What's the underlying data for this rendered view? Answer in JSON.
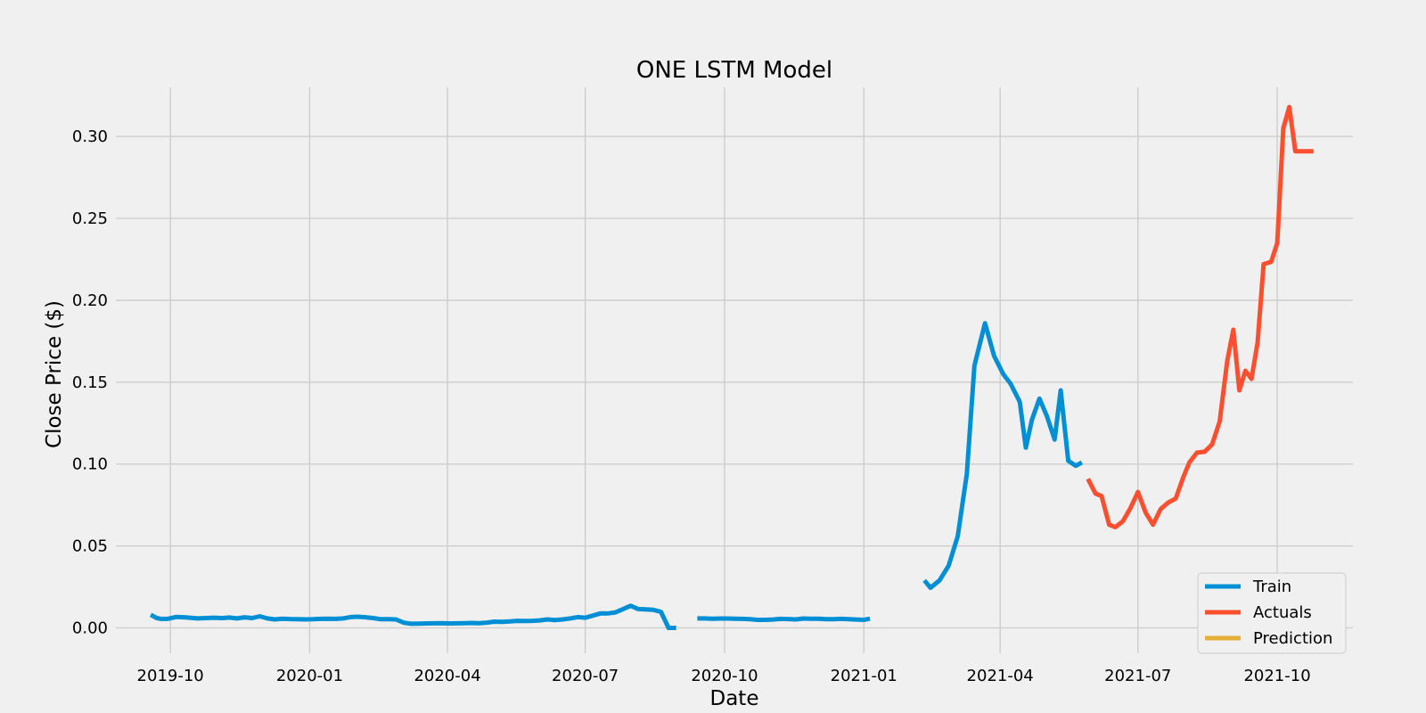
{
  "chart_data": {
    "type": "line",
    "title": "ONE LSTM Model",
    "xlabel": "Date",
    "ylabel": "Close Price ($)",
    "x_range": [
      "2019-08-26",
      "2021-11-20"
    ],
    "ylim": [
      -0.0155,
      0.33
    ],
    "x_ticks": [
      "2019-10-01",
      "2020-01-01",
      "2020-04-01",
      "2020-07-01",
      "2020-10-01",
      "2021-01-01",
      "2021-04-01",
      "2021-07-01",
      "2021-10-01"
    ],
    "x_tick_labels": [
      "2019-10",
      "2020-01",
      "2020-04",
      "2020-07",
      "2020-10",
      "2021-01",
      "2021-04",
      "2021-07",
      "2021-10"
    ],
    "y_ticks": [
      0.0,
      0.05,
      0.1,
      0.15,
      0.2,
      0.25,
      0.3
    ],
    "y_tick_labels": [
      "0.00",
      "0.05",
      "0.10",
      "0.15",
      "0.20",
      "0.25",
      "0.30"
    ],
    "grid": true,
    "legend_position": "lower-right",
    "colors": {
      "Train": "#008fd5",
      "Actuals": "#fc4f30",
      "Prediction": "#e5ae38"
    },
    "series": [
      {
        "name": "Train",
        "segments": [
          {
            "x": [
              "2019-09-18",
              "2019-09-22",
              "2019-09-25",
              "2019-09-29",
              "2019-10-05",
              "2019-10-10",
              "2019-10-14",
              "2019-10-19",
              "2019-10-24",
              "2019-10-30",
              "2019-11-04",
              "2019-11-09",
              "2019-11-14",
              "2019-11-19",
              "2019-11-24",
              "2019-11-29",
              "2019-12-04",
              "2019-12-09",
              "2019-12-14",
              "2019-12-19",
              "2019-12-24",
              "2019-12-29",
              "2020-01-03",
              "2020-01-08",
              "2020-01-13",
              "2020-01-18",
              "2020-01-23",
              "2020-01-28",
              "2020-02-02",
              "2020-02-07",
              "2020-02-12",
              "2020-02-17",
              "2020-02-22",
              "2020-02-27",
              "2020-03-03",
              "2020-03-08",
              "2020-03-13",
              "2020-03-18",
              "2020-03-23",
              "2020-03-28",
              "2020-04-02",
              "2020-04-07",
              "2020-04-12",
              "2020-04-17",
              "2020-04-22",
              "2020-04-27",
              "2020-05-02",
              "2020-05-07",
              "2020-05-12",
              "2020-05-17",
              "2020-05-22",
              "2020-05-27",
              "2020-06-01",
              "2020-06-06",
              "2020-06-11",
              "2020-06-16",
              "2020-06-21",
              "2020-06-26",
              "2020-07-01",
              "2020-07-06",
              "2020-07-11",
              "2020-07-16",
              "2020-07-21",
              "2020-07-26",
              "2020-07-31",
              "2020-08-05",
              "2020-08-10",
              "2020-08-15",
              "2020-08-20",
              "2020-08-25",
              "2020-08-30"
            ],
            "y": [
              0.008,
              0.006,
              0.0055,
              0.0055,
              0.0067,
              0.0065,
              0.0062,
              0.0058,
              0.006,
              0.0062,
              0.006,
              0.0063,
              0.0058,
              0.0065,
              0.006,
              0.0071,
              0.0058,
              0.0052,
              0.0056,
              0.0054,
              0.0053,
              0.0052,
              0.0053,
              0.0055,
              0.0056,
              0.0055,
              0.0058,
              0.0066,
              0.0068,
              0.0065,
              0.006,
              0.0053,
              0.0053,
              0.0052,
              0.0032,
              0.0025,
              0.0026,
              0.0027,
              0.0028,
              0.0029,
              0.0027,
              0.0028,
              0.0029,
              0.003,
              0.0029,
              0.0032,
              0.0038,
              0.0037,
              0.0039,
              0.0043,
              0.0042,
              0.0043,
              0.0046,
              0.0052,
              0.0048,
              0.0052,
              0.0058,
              0.0066,
              0.0062,
              0.0075,
              0.0088,
              0.0088,
              0.0095,
              0.0115,
              0.0135,
              0.0115,
              0.0113,
              0.011,
              0.0098,
              0.0,
              0.0
            ]
          },
          {
            "x": [
              "2020-09-13",
              "2020-09-18",
              "2020-09-23",
              "2020-09-28",
              "2020-10-03",
              "2020-10-08",
              "2020-10-13",
              "2020-10-18",
              "2020-10-23",
              "2020-10-28",
              "2020-11-02",
              "2020-11-07",
              "2020-11-12",
              "2020-11-17",
              "2020-11-22",
              "2020-11-27",
              "2020-12-02",
              "2020-12-07",
              "2020-12-12",
              "2020-12-17",
              "2020-12-22",
              "2020-12-27",
              "2021-01-01",
              "2021-01-05"
            ],
            "y": [
              0.0058,
              0.0058,
              0.0056,
              0.0057,
              0.0057,
              0.0056,
              0.0055,
              0.0053,
              0.0049,
              0.0049,
              0.0051,
              0.0055,
              0.0054,
              0.0052,
              0.0057,
              0.0056,
              0.0056,
              0.0053,
              0.0053,
              0.0055,
              0.0053,
              0.0051,
              0.0049,
              0.0056
            ]
          },
          {
            "x": [
              "2021-02-10",
              "2021-02-14",
              "2021-02-20",
              "2021-02-26",
              "2021-03-04",
              "2021-03-10",
              "2021-03-15",
              "2021-03-22",
              "2021-03-28",
              "2021-04-03",
              "2021-04-08",
              "2021-04-14",
              "2021-04-18",
              "2021-04-22",
              "2021-04-27",
              "2021-05-02",
              "2021-05-07",
              "2021-05-11",
              "2021-05-16",
              "2021-05-21",
              "2021-05-25"
            ],
            "y": [
              0.029,
              0.0245,
              0.029,
              0.038,
              0.056,
              0.094,
              0.16,
              0.186,
              0.166,
              0.155,
              0.149,
              0.138,
              0.11,
              0.127,
              0.14,
              0.129,
              0.115,
              0.145,
              0.102,
              0.099,
              0.101
            ]
          }
        ]
      },
      {
        "name": "Actuals",
        "segments": [
          {
            "x": [
              "2021-05-29",
              "2021-06-03",
              "2021-06-07",
              "2021-06-12",
              "2021-06-16",
              "2021-06-21",
              "2021-06-26",
              "2021-07-01",
              "2021-07-06",
              "2021-07-11",
              "2021-07-16",
              "2021-07-21",
              "2021-07-26",
              "2021-07-31",
              "2021-08-04",
              "2021-08-09",
              "2021-08-14",
              "2021-08-19",
              "2021-08-24",
              "2021-08-29",
              "2021-09-02",
              "2021-09-06",
              "2021-09-10",
              "2021-09-14",
              "2021-09-18",
              "2021-09-22",
              "2021-09-27",
              "2021-10-01",
              "2021-10-05",
              "2021-10-09",
              "2021-10-13",
              "2021-10-17",
              "2021-10-21",
              "2021-10-25"
            ],
            "y": [
              0.091,
              0.082,
              0.0805,
              0.063,
              0.0615,
              0.065,
              0.073,
              0.083,
              0.0705,
              0.063,
              0.0725,
              0.0765,
              0.079,
              0.092,
              0.101,
              0.107,
              0.1075,
              0.112,
              0.126,
              0.163,
              0.182,
              0.145,
              0.157,
              0.152,
              0.174,
              0.222,
              0.2235,
              0.235,
              0.305,
              0.318,
              0.291,
              0.291,
              0.291,
              0.291
            ]
          }
        ]
      },
      {
        "name": "Prediction",
        "segments": []
      }
    ]
  }
}
